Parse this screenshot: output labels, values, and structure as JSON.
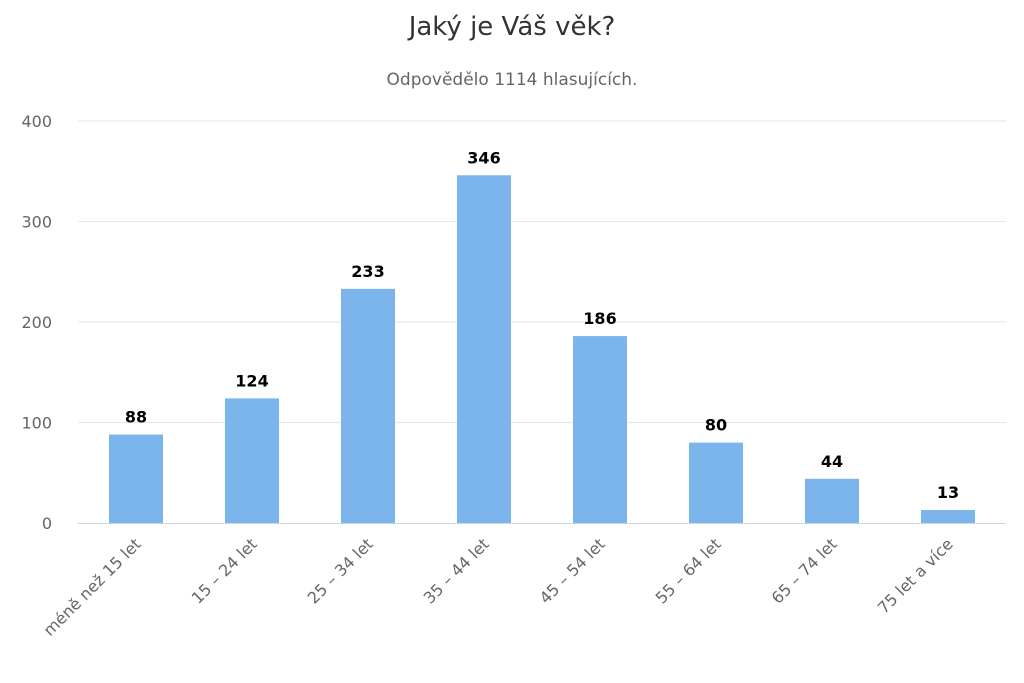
{
  "chart_data": {
    "type": "bar",
    "title": "Jaký je Váš věk?",
    "subtitle": "Odpovědělo 1114 hlasujících.",
    "categories": [
      "méně než 15 let",
      "15 – 24 let",
      "25 – 34 let",
      "35 – 44 let",
      "45 – 54 let",
      "55 – 64 let",
      "65 – 74 let",
      "75 let a více"
    ],
    "values": [
      88,
      124,
      233,
      346,
      186,
      80,
      44,
      13
    ],
    "ylim": [
      0,
      400
    ],
    "yticks": [
      0,
      100,
      200,
      300,
      400
    ],
    "xlabel": "",
    "ylabel": "",
    "grid": true,
    "legend": "none",
    "colors": {
      "bar": "#7cb5ec",
      "grid": "#e6e6e6",
      "axis": "#ccd6eb"
    }
  }
}
